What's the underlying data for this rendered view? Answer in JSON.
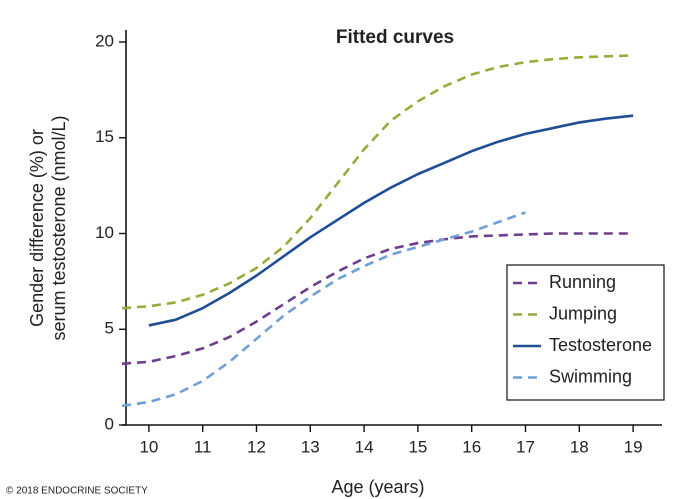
{
  "chart_data": {
    "type": "line",
    "title": "Fitted curves",
    "x_label": "Age (years)",
    "y_label": [
      "Gender difference (%) or",
      "serum testosterone (nmol/L)"
    ],
    "credit": "© 2018 ENDOCRINE SOCIETY",
    "x": [
      9.5,
      10,
      10.5,
      11,
      11.5,
      12,
      12.5,
      13,
      13.5,
      14,
      14.5,
      15,
      15.5,
      16,
      16.5,
      17,
      17.5,
      18,
      18.5,
      19
    ],
    "series": [
      {
        "name": "Running",
        "color": "#6b3f8e",
        "dashed": true,
        "values": [
          3.2,
          3.3,
          3.6,
          4.0,
          4.6,
          5.4,
          6.3,
          7.2,
          8.0,
          8.7,
          9.2,
          9.5,
          9.7,
          9.85,
          9.9,
          9.95,
          10.0,
          10.0,
          10.0,
          10.0
        ]
      },
      {
        "name": "Jumping",
        "color": "#9aab3a",
        "dashed": true,
        "values": [
          6.1,
          6.2,
          6.4,
          6.8,
          7.4,
          8.2,
          9.3,
          10.8,
          12.6,
          14.4,
          15.9,
          16.9,
          17.7,
          18.3,
          18.7,
          18.95,
          19.1,
          19.2,
          19.25,
          19.3
        ]
      },
      {
        "name": "Testosterone",
        "color": "#1f4e96",
        "dashed": false,
        "values": [
          null,
          5.2,
          5.5,
          6.1,
          6.9,
          7.8,
          8.8,
          9.8,
          10.7,
          11.6,
          12.4,
          13.1,
          13.7,
          14.3,
          14.8,
          15.2,
          15.5,
          15.8,
          16.0,
          16.15
        ]
      },
      {
        "name": "Swimming",
        "color": "#6f9fd6",
        "dashed": true,
        "values": [
          1.0,
          1.2,
          1.6,
          2.3,
          3.3,
          4.5,
          5.7,
          6.7,
          7.6,
          8.3,
          8.9,
          9.3,
          9.7,
          10.1,
          10.6,
          11.1,
          null,
          null,
          null,
          null
        ]
      }
    ],
    "xlim": [
      9.5,
      19.5
    ],
    "xticks": [
      10,
      11,
      12,
      13,
      14,
      15,
      16,
      17,
      18,
      19
    ],
    "ylim": [
      0,
      20.6
    ],
    "yticks": [
      0,
      5,
      10,
      15,
      20
    ],
    "legend": "lower right",
    "grid": false
  }
}
